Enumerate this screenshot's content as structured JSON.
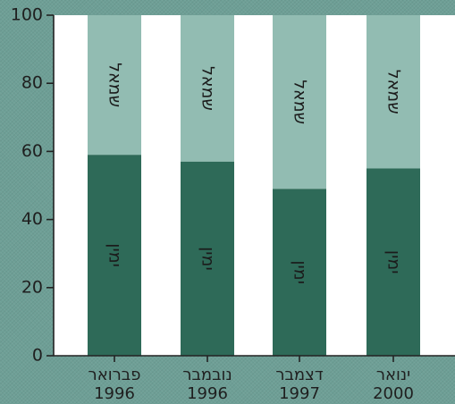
{
  "colors": {
    "panel": "#ffffff",
    "lower_segment": "#2e6a58",
    "upper_segment": "#92bcb2",
    "background": "#6e9f96",
    "axis": "#222222"
  },
  "chart_data": {
    "type": "bar",
    "stacked": true,
    "categories": [
      {
        "line1": "פברואר",
        "line2": "1996"
      },
      {
        "line1": "נובמבר",
        "line2": "1996"
      },
      {
        "line1": "דצמבר",
        "line2": "1997"
      },
      {
        "line1": "ינואר",
        "line2": "2000"
      }
    ],
    "series": [
      {
        "name": "ימין",
        "values": [
          59,
          57,
          49,
          55
        ]
      },
      {
        "name": "שמאל",
        "values": [
          41,
          43,
          51,
          45
        ]
      }
    ],
    "ylim": [
      0,
      100
    ],
    "yticks": [
      "0",
      "20",
      "40",
      "60",
      "80",
      "100"
    ],
    "grid": false,
    "title": "",
    "xlabel": "",
    "ylabel": ""
  }
}
